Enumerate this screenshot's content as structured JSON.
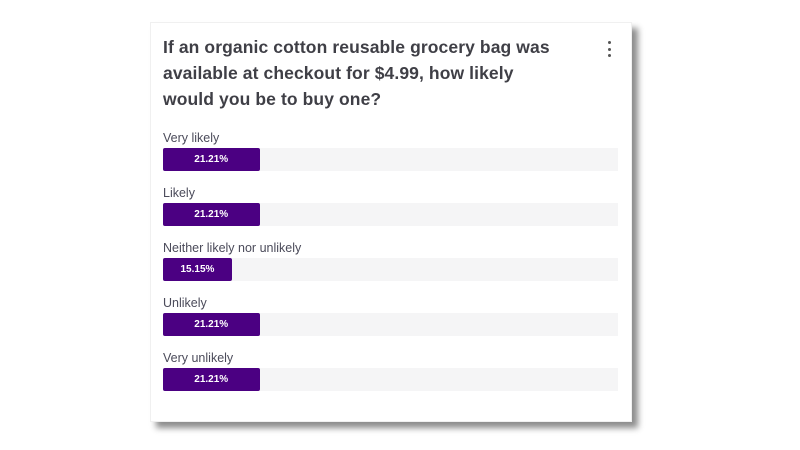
{
  "card": {
    "title": "If an organic cotton reusable grocery bag was available at checkout for $4.99, how likely would you be to buy one?",
    "menu_icon": "more-vertical-icon"
  },
  "colors": {
    "bar_fill": "#4b0082",
    "track": "#f5f5f6",
    "title_text": "#3f3f46",
    "label_text": "#4b4b5a"
  },
  "chart_data": {
    "type": "bar",
    "orientation": "horizontal",
    "title": "If an organic cotton reusable grocery bag was available at checkout for $4.99, how likely would you be to buy one?",
    "categories": [
      "Very likely",
      "Likely",
      "Neither likely nor unlikely",
      "Unlikely",
      "Very unlikely"
    ],
    "values": [
      21.21,
      21.21,
      15.15,
      21.21,
      21.21
    ],
    "value_labels": [
      "21.21%",
      "21.21%",
      "15.15%",
      "21.21%",
      "21.21%"
    ],
    "xlabel": "",
    "ylabel": "",
    "xlim": [
      0,
      100
    ],
    "grid": false,
    "legend": "none"
  }
}
